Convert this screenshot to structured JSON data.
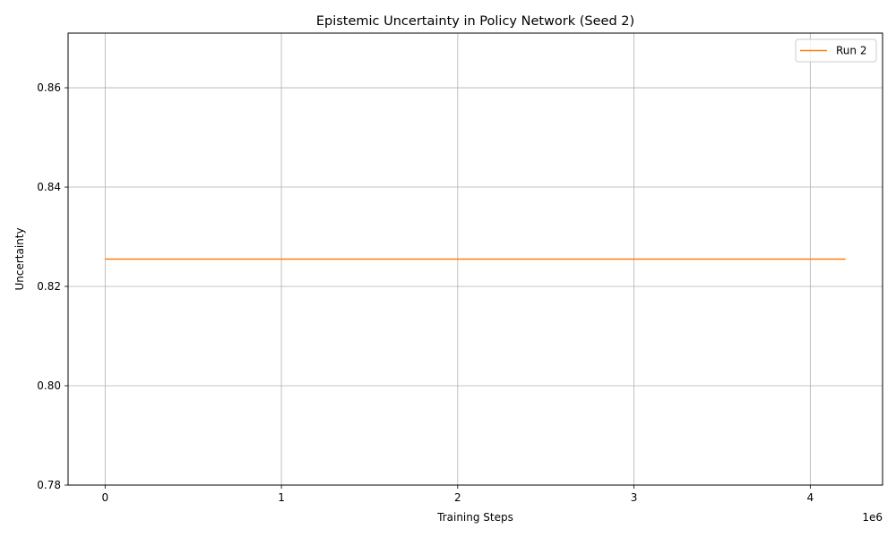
{
  "chart_data": {
    "type": "line",
    "title": "Epistemic Uncertainty in Policy Network (Seed 2)",
    "xlabel": "Training Steps",
    "ylabel": "Uncertainty",
    "x_offset_label": "1e6",
    "x_ticks": [
      0,
      1000000,
      2000000,
      3000000,
      4000000
    ],
    "x_tick_labels": [
      "0",
      "1",
      "2",
      "3",
      "4"
    ],
    "y_ticks": [
      0.78,
      0.8,
      0.82,
      0.84,
      0.86
    ],
    "y_tick_labels": [
      "0.78",
      "0.80",
      "0.82",
      "0.84",
      "0.86"
    ],
    "xlim": [
      -210000,
      4410000
    ],
    "ylim": [
      0.78,
      0.871
    ],
    "grid": true,
    "legend_position": "top-right",
    "series": [
      {
        "name": "Run 2",
        "color": "#ff7f0e",
        "x": [
          0,
          4200000
        ],
        "y": [
          0.8255,
          0.8255
        ]
      }
    ]
  }
}
